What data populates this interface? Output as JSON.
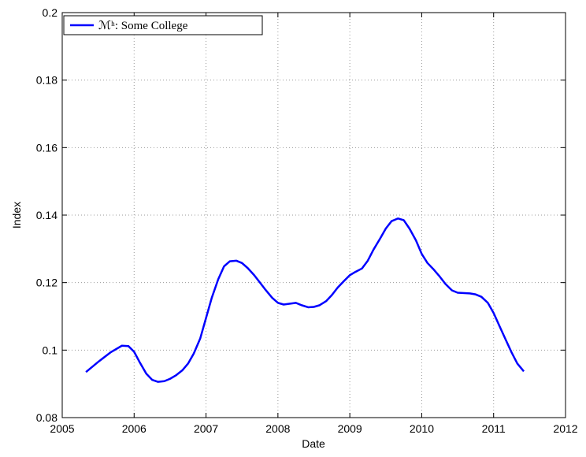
{
  "chart_data": {
    "type": "line",
    "xlabel": "Date",
    "ylabel": "Index",
    "x": [
      2005.33,
      2005.5,
      2005.67,
      2005.83,
      2005.92,
      2006.0,
      2006.08,
      2006.17,
      2006.25,
      2006.33,
      2006.42,
      2006.5,
      2006.58,
      2006.67,
      2006.75,
      2006.83,
      2006.92,
      2007.0,
      2007.08,
      2007.17,
      2007.25,
      2007.33,
      2007.42,
      2007.5,
      2007.58,
      2007.67,
      2007.75,
      2007.83,
      2007.92,
      2008.0,
      2008.08,
      2008.25,
      2008.33,
      2008.42,
      2008.5,
      2008.58,
      2008.67,
      2008.75,
      2008.83,
      2008.92,
      2009.0,
      2009.08,
      2009.17,
      2009.25,
      2009.33,
      2009.42,
      2009.5,
      2009.58,
      2009.67,
      2009.75,
      2009.83,
      2009.92,
      2010.0,
      2010.08,
      2010.17,
      2010.25,
      2010.33,
      2010.42,
      2010.5,
      2010.67,
      2010.75,
      2010.83,
      2010.92,
      2011.0,
      2011.08,
      2011.17,
      2011.25,
      2011.33,
      2011.42
    ],
    "series": [
      {
        "name": "ℳʰ: Some College",
        "color": "#0000ff",
        "values": [
          0.0935,
          0.0965,
          0.0993,
          0.1013,
          0.1012,
          0.0995,
          0.0963,
          0.093,
          0.0912,
          0.0906,
          0.0908,
          0.0915,
          0.0925,
          0.094,
          0.096,
          0.099,
          0.1035,
          0.1095,
          0.1155,
          0.121,
          0.1248,
          0.1263,
          0.1265,
          0.1258,
          0.1243,
          0.1222,
          0.12,
          0.1178,
          0.1155,
          0.114,
          0.1135,
          0.114,
          0.1133,
          0.1127,
          0.1128,
          0.1133,
          0.1145,
          0.1163,
          0.1185,
          0.1205,
          0.1222,
          0.1232,
          0.1242,
          0.1265,
          0.1298,
          0.133,
          0.136,
          0.1382,
          0.139,
          0.1385,
          0.136,
          0.1325,
          0.1285,
          0.1258,
          0.1238,
          0.1218,
          0.1196,
          0.1177,
          0.117,
          0.1168,
          0.1165,
          0.1158,
          0.114,
          0.111,
          0.1072,
          0.103,
          0.0993,
          0.096,
          0.0937
        ]
      }
    ],
    "xlim": [
      2005,
      2012
    ],
    "xticks": [
      2005,
      2006,
      2007,
      2008,
      2009,
      2010,
      2011,
      2012
    ],
    "ylim": [
      0.08,
      0.2
    ],
    "yticks": [
      0.08,
      0.1,
      0.12,
      0.14,
      0.16,
      0.18,
      0.2
    ],
    "grid": true,
    "legend": "upper left"
  }
}
